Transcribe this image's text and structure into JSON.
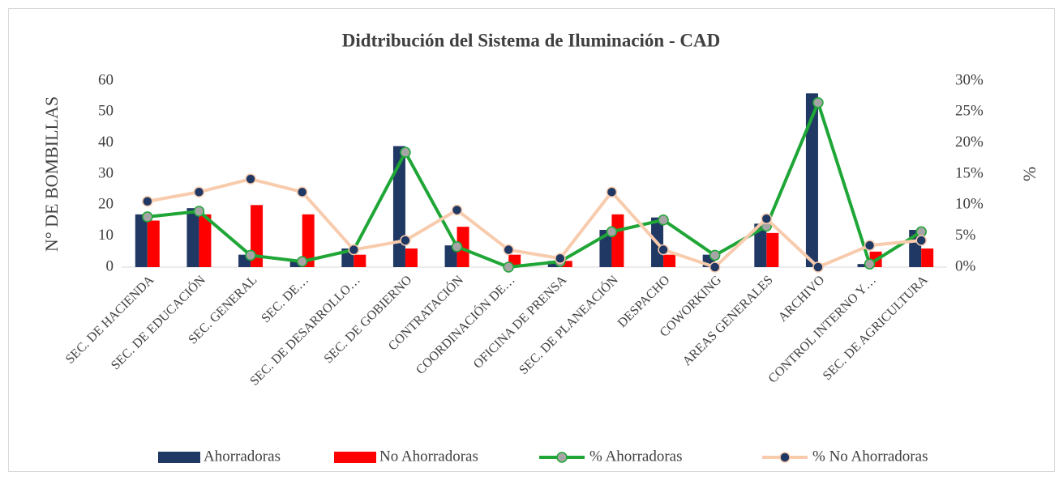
{
  "chart_data": {
    "type": "bar_line",
    "title": "Didtribución del Sistema de Iluminación - CAD",
    "y_label": "N° DE BOMBILLAS",
    "y2_label": "%",
    "categories": [
      "SEC. DE HACIENDA",
      "SEC. DE EDUCACIÓN",
      "SEC. GENERAL",
      "SEC. DE…",
      "SEC. DE DESARROLLO…",
      "SEC. DE GOBIERNO",
      "CONTRATACIÓN",
      "COORDINACIÓN DE…",
      "OFICINA  DE PRENSA",
      "SEC. DE PLANEACIÓN",
      "DESPACHO",
      "COWORKING",
      "AREAS GENERALES",
      "ARCHIVO",
      "CONTROL INTERNO Y…",
      "SEC. DE AGRICULTURA"
    ],
    "series": [
      {
        "name": "Ahorradoras",
        "type": "bar",
        "color": "#203864",
        "values": [
          17,
          19,
          4,
          2,
          6,
          39,
          7,
          0,
          2,
          12,
          16,
          4,
          14,
          56,
          1,
          12
        ]
      },
      {
        "name": "No Ahorradoras",
        "type": "bar",
        "color": "#ff0000",
        "values": [
          15,
          17,
          20,
          17,
          4,
          6,
          13,
          4,
          2,
          17,
          4,
          0,
          11,
          0,
          5,
          6
        ]
      },
      {
        "name": "% Ahorradoras",
        "type": "line",
        "axis": "y2",
        "color": "#1fa637",
        "marker_color": "#a5a5a5",
        "values": [
          8.1,
          9.0,
          1.9,
          0.9,
          2.8,
          18.5,
          3.3,
          0,
          0.9,
          5.7,
          7.6,
          1.9,
          6.6,
          26.5,
          0.5,
          5.7
        ]
      },
      {
        "name": "% No Ahorradoras",
        "type": "line",
        "axis": "y2",
        "color": "#f8cbad",
        "marker_color": "#203864",
        "values": [
          10.6,
          12.1,
          14.2,
          12.1,
          2.8,
          4.3,
          9.2,
          2.8,
          1.4,
          12.1,
          2.8,
          0,
          7.8,
          0,
          3.5,
          4.3
        ]
      }
    ],
    "ylim": [
      0,
      60
    ],
    "yticks": [
      0,
      10,
      20,
      30,
      40,
      50,
      60
    ],
    "y2lim": [
      0,
      30
    ],
    "y2ticks": [
      {
        "value": 0,
        "label": "0%"
      },
      {
        "value": 5,
        "label": "5%"
      },
      {
        "value": 10,
        "label": "10%"
      },
      {
        "value": 15,
        "label": "15%"
      },
      {
        "value": 20,
        "label": "20%"
      },
      {
        "value": 25,
        "label": "25%"
      },
      {
        "value": 30,
        "label": "30%"
      }
    ],
    "legend": "bottom"
  }
}
